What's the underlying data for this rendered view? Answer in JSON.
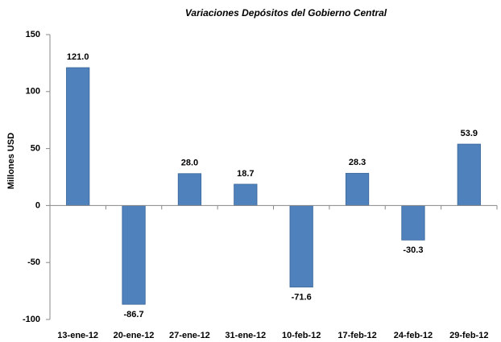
{
  "chart_data": {
    "type": "bar",
    "title": "Variaciones Depósitos del Gobierno Central",
    "y_label": "Millones USD",
    "categories": [
      "13-ene-12",
      "20-ene-12",
      "27-ene-12",
      "31-ene-12",
      "10-feb-12",
      "17-feb-12",
      "24-feb-12",
      "29-feb-12"
    ],
    "values": [
      121.0,
      -86.7,
      28.0,
      18.7,
      -71.6,
      28.3,
      -30.3,
      53.9
    ],
    "value_labels": [
      "121.0",
      "-86.7",
      "28.0",
      "18.7",
      "-71.6",
      "28.3",
      "-30.3",
      "53.9"
    ],
    "color": "#4f81bd",
    "ylim": [
      -100,
      150
    ],
    "yticks": [
      -100,
      -50,
      0,
      50,
      100,
      150
    ],
    "grid": false
  }
}
